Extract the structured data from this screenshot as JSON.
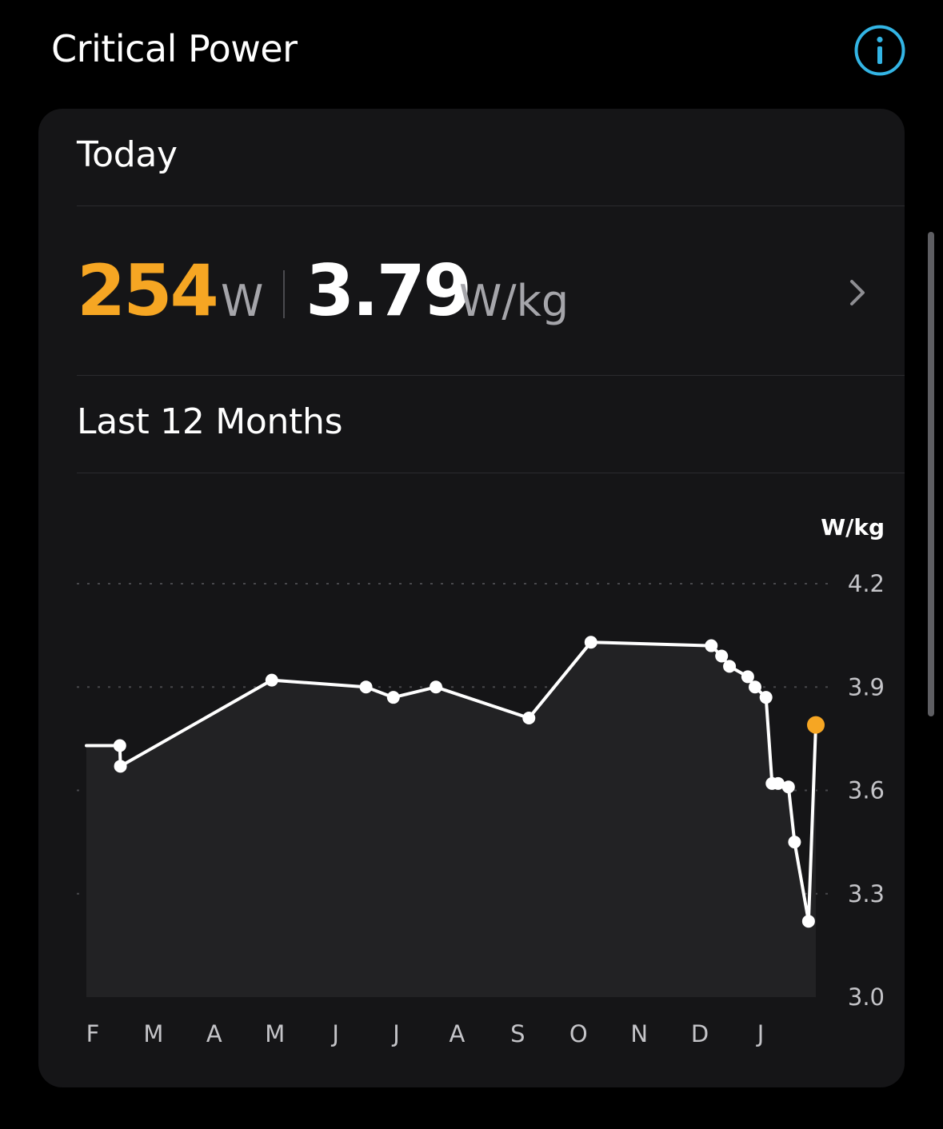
{
  "header": {
    "title": "Critical Power",
    "info_icon": "info-circle-icon",
    "info_color": "#33b5e5"
  },
  "today": {
    "label": "Today",
    "watts_value": "254",
    "watts_unit": "W",
    "wkg_value": "3.79",
    "wkg_unit": "W/kg",
    "watts_color": "#f6a623",
    "chevron_icon": "chevron-right-icon"
  },
  "history": {
    "label": "Last 12 Months"
  },
  "chart_data": {
    "type": "line",
    "ylabel": "W/kg",
    "ylim": [
      3.0,
      4.2
    ],
    "y_ticks": [
      "4.2",
      "3.9",
      "3.6",
      "3.3",
      "3.0"
    ],
    "x_tick_labels": [
      "F",
      "M",
      "A",
      "M",
      "J",
      "J",
      "A",
      "S",
      "O",
      "N",
      "D",
      "J"
    ],
    "x_domain": [
      0,
      12
    ],
    "grid": "dotted horizontal",
    "line_color": "#ffffff",
    "highlight_color": "#f6a623",
    "series": [
      {
        "points": [
          {
            "x": 0.0,
            "y": 3.73,
            "marker": false
          },
          {
            "x": 0.55,
            "y": 3.73,
            "marker": true
          },
          {
            "x": 0.56,
            "y": 3.67,
            "marker": true
          },
          {
            "x": 3.05,
            "y": 3.92,
            "marker": true
          },
          {
            "x": 4.6,
            "y": 3.9,
            "marker": true
          },
          {
            "x": 5.05,
            "y": 3.87,
            "marker": true
          },
          {
            "x": 5.75,
            "y": 3.9,
            "marker": true
          },
          {
            "x": 7.28,
            "y": 3.81,
            "marker": true
          },
          {
            "x": 8.3,
            "y": 4.03,
            "marker": true
          },
          {
            "x": 10.28,
            "y": 4.02,
            "marker": true
          },
          {
            "x": 10.45,
            "y": 3.99,
            "marker": true
          },
          {
            "x": 10.58,
            "y": 3.96,
            "marker": true
          },
          {
            "x": 10.88,
            "y": 3.93,
            "marker": true
          },
          {
            "x": 11.0,
            "y": 3.9,
            "marker": true
          },
          {
            "x": 11.18,
            "y": 3.87,
            "marker": true
          },
          {
            "x": 11.28,
            "y": 3.62,
            "marker": true
          },
          {
            "x": 11.38,
            "y": 3.62,
            "marker": true
          },
          {
            "x": 11.55,
            "y": 3.61,
            "marker": true
          },
          {
            "x": 11.65,
            "y": 3.45,
            "marker": true
          },
          {
            "x": 11.88,
            "y": 3.22,
            "marker": true
          },
          {
            "x": 12.0,
            "y": 3.79,
            "marker": true,
            "highlight": true
          }
        ]
      }
    ]
  }
}
